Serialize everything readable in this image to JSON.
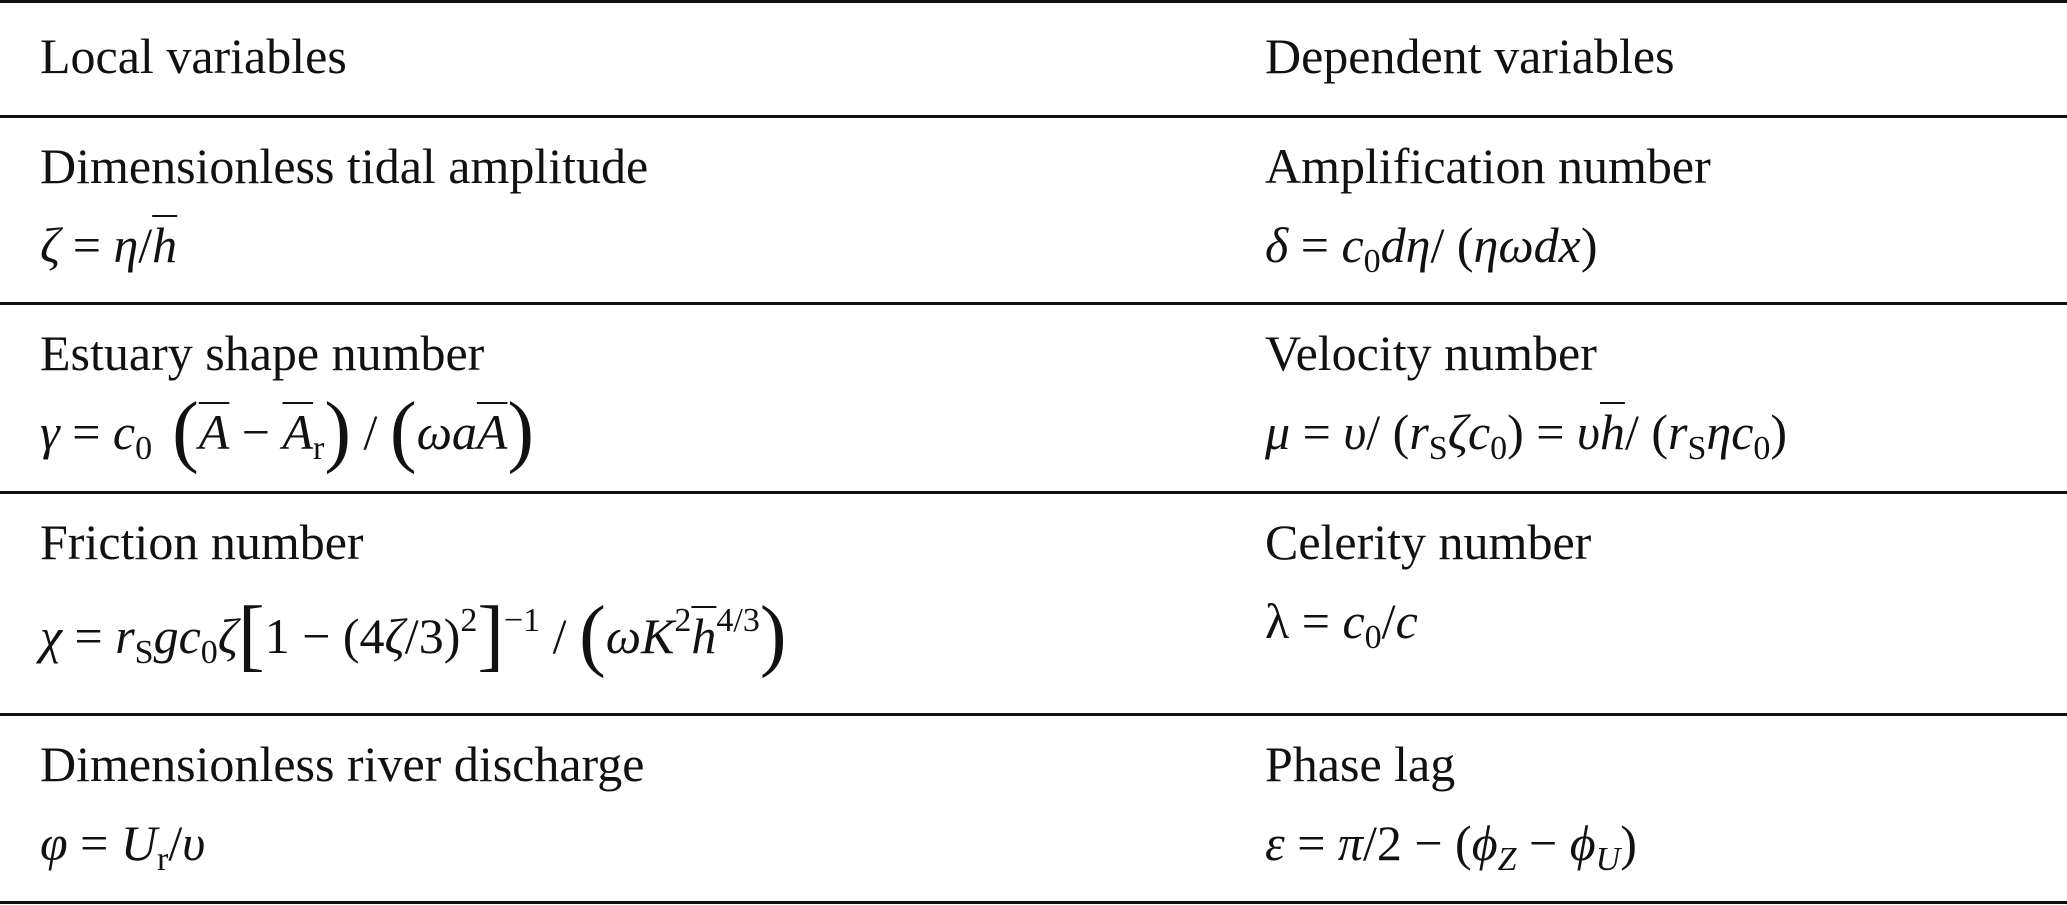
{
  "header": {
    "left": "Local variables",
    "right": "Dependent variables"
  },
  "rows": [
    {
      "local": {
        "label": "Dimensionless tidal amplitude",
        "formula": [
          {
            "t": "ζ",
            "f": "i"
          },
          {
            "t": " = ",
            "f": "r"
          },
          {
            "t": "η",
            "f": "i"
          },
          {
            "t": "/",
            "f": "r"
          },
          {
            "t": "h",
            "f": "ov"
          }
        ]
      },
      "dependent": {
        "label": "Amplification number",
        "formula": [
          {
            "t": "δ",
            "f": "i"
          },
          {
            "t": " = ",
            "f": "r"
          },
          {
            "t": "c",
            "f": "i"
          },
          {
            "t": "0",
            "f": "sub"
          },
          {
            "t": "dη",
            "f": "i"
          },
          {
            "t": "/ (",
            "f": "r"
          },
          {
            "t": "ηωdx",
            "f": "i"
          },
          {
            "t": ")",
            "f": "r"
          }
        ]
      }
    },
    {
      "local": {
        "label": "Estuary shape number",
        "formula": [
          {
            "t": "γ",
            "f": "i"
          },
          {
            "t": " = ",
            "f": "r"
          },
          {
            "t": "c",
            "f": "i"
          },
          {
            "t": "0",
            "f": "sub"
          },
          {
            "t": " (",
            "f": "big"
          },
          {
            "t": "A",
            "f": "ov"
          },
          {
            "t": " − ",
            "f": "r"
          },
          {
            "t": "A",
            "f": "ov"
          },
          {
            "t": "r",
            "f": "sub"
          },
          {
            "t": ")",
            "f": "big"
          },
          {
            "t": " / ",
            "f": "r"
          },
          {
            "t": "(",
            "f": "big"
          },
          {
            "t": "ωa",
            "f": "i"
          },
          {
            "t": "A",
            "f": "ov"
          },
          {
            "t": ")",
            "f": "big"
          }
        ]
      },
      "dependent": {
        "label": "Velocity number",
        "formula": [
          {
            "t": "μ",
            "f": "i"
          },
          {
            "t": " = ",
            "f": "r"
          },
          {
            "t": "υ",
            "f": "i"
          },
          {
            "t": "/ (",
            "f": "r"
          },
          {
            "t": "r",
            "f": "i"
          },
          {
            "t": "S",
            "f": "sub"
          },
          {
            "t": "ζc",
            "f": "i"
          },
          {
            "t": "0",
            "f": "sub"
          },
          {
            "t": ") = ",
            "f": "r"
          },
          {
            "t": "υ",
            "f": "i"
          },
          {
            "t": "h",
            "f": "ov"
          },
          {
            "t": "/ (",
            "f": "r"
          },
          {
            "t": "r",
            "f": "i"
          },
          {
            "t": "S",
            "f": "sub"
          },
          {
            "t": "ηc",
            "f": "i"
          },
          {
            "t": "0",
            "f": "sub"
          },
          {
            "t": ")",
            "f": "r"
          }
        ]
      }
    },
    {
      "local": {
        "label": "Friction number",
        "formula": [
          {
            "t": "χ",
            "f": "i"
          },
          {
            "t": " = ",
            "f": "r"
          },
          {
            "t": "r",
            "f": "i"
          },
          {
            "t": "S",
            "f": "sub"
          },
          {
            "t": "gc",
            "f": "i"
          },
          {
            "t": "0",
            "f": "sub"
          },
          {
            "t": "ζ",
            "f": "i"
          },
          {
            "t": "[",
            "f": "big"
          },
          {
            "t": "1 − (4",
            "f": "r"
          },
          {
            "t": "ζ",
            "f": "i"
          },
          {
            "t": "/3)",
            "f": "r"
          },
          {
            "t": "2",
            "f": "sup"
          },
          {
            "t": "]",
            "f": "big"
          },
          {
            "t": "−1",
            "f": "sup"
          },
          {
            "t": " / ",
            "f": "r"
          },
          {
            "t": "(",
            "f": "big"
          },
          {
            "t": "ωK",
            "f": "i"
          },
          {
            "t": "2",
            "f": "sup"
          },
          {
            "t": "h",
            "f": "ov"
          },
          {
            "t": "4/3",
            "f": "sup"
          },
          {
            "t": ")",
            "f": "big"
          }
        ]
      },
      "dependent": {
        "label": "Celerity number",
        "formula": [
          {
            "t": "λ",
            "f": "r"
          },
          {
            "t": " = ",
            "f": "r"
          },
          {
            "t": "c",
            "f": "i"
          },
          {
            "t": "0",
            "f": "sub"
          },
          {
            "t": "/",
            "f": "r"
          },
          {
            "t": "c",
            "f": "i"
          }
        ]
      }
    },
    {
      "local": {
        "label": "Dimensionless river discharge",
        "formula": [
          {
            "t": "φ",
            "f": "i"
          },
          {
            "t": " = ",
            "f": "r"
          },
          {
            "t": "U",
            "f": "i"
          },
          {
            "t": "r",
            "f": "sub"
          },
          {
            "t": "/",
            "f": "r"
          },
          {
            "t": "υ",
            "f": "i"
          }
        ]
      },
      "dependent": {
        "label": "Phase lag",
        "formula": [
          {
            "t": "ε",
            "f": "i"
          },
          {
            "t": " = ",
            "f": "r"
          },
          {
            "t": "π",
            "f": "i"
          },
          {
            "t": "/2 − (",
            "f": "r"
          },
          {
            "t": "ϕ",
            "f": "i"
          },
          {
            "t": "Z",
            "f": "isub"
          },
          {
            "t": " − ",
            "f": "r"
          },
          {
            "t": "ϕ",
            "f": "i"
          },
          {
            "t": "U",
            "f": "isub"
          },
          {
            "t": ")",
            "f": "r"
          }
        ]
      }
    }
  ]
}
